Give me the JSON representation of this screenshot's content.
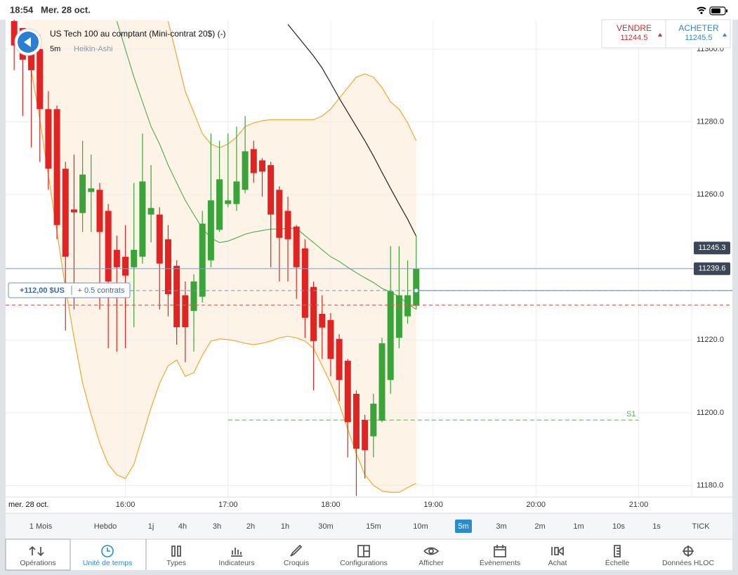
{
  "status_bar": {
    "time": "18:54",
    "date": "Mer. 28 oct."
  },
  "instrument": {
    "name": "US Tech 100 au comptant (Mini-contrat 20$) (-)",
    "timeframe": "5m",
    "chart_style": "Heikin-Ashi"
  },
  "quote": {
    "sell_label": "VENDRE",
    "sell_price": 11244.5,
    "buy_label": "ACHETER",
    "buy_price": 11245.5
  },
  "position": {
    "profit": "+112,00 $US",
    "size": "+ 0.5 contrats"
  },
  "chart_data": {
    "type": "candlestick",
    "up_color": "#3aa33a",
    "down_color": "#e02424",
    "x": [
      895,
      900,
      905,
      910,
      915,
      920,
      925,
      930,
      935,
      940,
      945,
      950,
      955,
      960,
      965,
      970,
      975,
      980,
      985,
      990,
      995,
      1000,
      1005,
      1010,
      1015,
      1020,
      1025,
      1030,
      1035,
      1040,
      1045,
      1050,
      1055,
      1060,
      1065,
      1070,
      1075,
      1080,
      1085,
      1090,
      1095,
      1100,
      1105,
      1110,
      1115,
      1120,
      1125,
      1130
    ],
    "open": [
      11307.7,
      11305.8,
      11301.0,
      11300.0,
      11283.5,
      11283.5,
      11267.1,
      11255.9,
      11254.9,
      11260.7,
      11261.3,
      11255.5,
      11244.8,
      11242.9,
      11240.0,
      11242.9,
      11254.5,
      11254.5,
      11247.7,
      11240.4,
      11232.3,
      11228.0,
      11231.9,
      11241.9,
      11250.3,
      11257.4,
      11257.4,
      11261.3,
      11272.5,
      11269.4,
      11268.1,
      11261.3,
      11255.5,
      11251.2,
      11245.2,
      11234.6,
      11227.2,
      11225.5,
      11220.3,
      11214.3,
      11205.2,
      11198.0,
      11193.5,
      11197.8,
      11209.0,
      11220.6,
      11226.5,
      11229.4
    ],
    "high": [
      11308.7,
      11305.8,
      11301.9,
      11303.9,
      11288.4,
      11284.5,
      11269.0,
      11271.0,
      11274.8,
      11271.0,
      11263.2,
      11257.4,
      11248.7,
      11251.6,
      11263.2,
      11276.8,
      11268.1,
      11256.5,
      11251.6,
      11241.9,
      11236.1,
      11238.1,
      11255.5,
      11276.8,
      11274.8,
      11276.8,
      11278.7,
      11281.6,
      11274.8,
      11270.0,
      11269.0,
      11262.3,
      11259.4,
      11251.6,
      11247.7,
      11236.1,
      11232.3,
      11227.4,
      11221.6,
      11214.8,
      11206.1,
      11199.4,
      11205.2,
      11220.6,
      11245.8,
      11245.8,
      11241.9,
      11248.7
    ],
    "low": [
      11294.2,
      11281.6,
      11272.9,
      11269.0,
      11261.3,
      11247.7,
      11222.6,
      11228.4,
      11249.7,
      11249.7,
      11228.4,
      11217.7,
      11216.8,
      11217.7,
      11223.5,
      11241.0,
      11246.8,
      11228.4,
      11226.5,
      11218.7,
      11213.9,
      11216.8,
      11230.3,
      11240.0,
      11249.7,
      11256.5,
      11255.5,
      11260.3,
      11263.2,
      11259.4,
      11240.0,
      11236.1,
      11236.1,
      11231.3,
      11220.6,
      11206.1,
      11214.8,
      11210.0,
      11203.2,
      11187.7,
      11177.1,
      11181.9,
      11187.7,
      11197.4,
      11205.2,
      11217.7,
      11224.5,
      11228.4
    ],
    "close": [
      11301.0,
      11297.1,
      11294.2,
      11283.5,
      11267.1,
      11251.6,
      11242.9,
      11255.1,
      11265.5,
      11261.7,
      11249.7,
      11236.1,
      11240.0,
      11237.7,
      11244.8,
      11263.6,
      11256.3,
      11241.0,
      11232.6,
      11223.5,
      11223.5,
      11236.1,
      11252.0,
      11258.4,
      11264.2,
      11258.4,
      11263.6,
      11271.9,
      11265.9,
      11266.3,
      11254.5,
      11248.1,
      11247.7,
      11240.0,
      11226.1,
      11219.7,
      11223.4,
      11214.8,
      11209.0,
      11197.4,
      11190.1,
      11189.7,
      11202.5,
      11219.1,
      11233.4,
      11232.3,
      11232.3,
      11239.6
    ],
    "overlays": [
      {
        "color": "#f0a830",
        "values": [
          null,
          null,
          null,
          null,
          null,
          null,
          null,
          null,
          null,
          null,
          null,
          null,
          null,
          null,
          null,
          null,
          null,
          null,
          11307.7,
          11298.1,
          11288.4,
          11282.6,
          11276.8,
          11273.9,
          11272.9,
          11273.9,
          11275.8,
          11278.7,
          11279.7,
          11280.3,
          11280.6,
          11280.6,
          11280.6,
          11280.6,
          11280.6,
          11280.6,
          11281.6,
          11283.5,
          11286.5,
          11289.4,
          11292.3,
          11293.2,
          11292.3,
          11289.4,
          11285.5,
          11283.5,
          11279.7,
          11274.8
        ]
      },
      {
        "color": "#f0a830",
        "values": [
          null,
          11303.9,
          11294.2,
          11280.6,
          11265.2,
          11249.7,
          11234.2,
          11220.6,
          11208.1,
          11199.4,
          11191.6,
          11185.8,
          11182.9,
          11181.9,
          11185.8,
          11193.5,
          11201.3,
          11208.1,
          11212.9,
          11214.5,
          11210.0,
          11211.0,
          11215.8,
          11219.7,
          11220.3,
          11220.1,
          11219.7,
          11219.1,
          11218.7,
          11219.1,
          11219.7,
          11220.6,
          11221.0,
          11220.6,
          11219.7,
          11217.7,
          11212.9,
          11208.1,
          11202.3,
          11195.5,
          11188.7,
          11182.9,
          11180.0,
          11178.5,
          11178.1,
          11178.1,
          11179.4,
          11180.6
        ]
      },
      {
        "color": "#5cae5c",
        "values": [
          null,
          null,
          null,
          null,
          null,
          null,
          null,
          null,
          null,
          null,
          null,
          null,
          11307.7,
          11300.0,
          11292.3,
          11285.5,
          11278.7,
          11273.9,
          11268.1,
          11263.2,
          11258.4,
          11254.5,
          11250.7,
          11248.1,
          11246.8,
          11247.2,
          11248.1,
          11249.1,
          11249.7,
          11250.1,
          11250.5,
          11250.5,
          11250.7,
          11250.7,
          11248.7,
          11246.8,
          11244.8,
          11242.9,
          11241.6,
          11240.0,
          11238.5,
          11237.1,
          11235.8,
          11234.2,
          11233.2,
          11231.9,
          11230.0,
          11228.4
        ]
      },
      {
        "color": "#222222",
        "values": [
          null,
          null,
          null,
          null,
          null,
          null,
          null,
          null,
          null,
          null,
          null,
          null,
          null,
          null,
          null,
          null,
          null,
          null,
          null,
          null,
          null,
          null,
          null,
          null,
          null,
          null,
          null,
          null,
          null,
          null,
          null,
          null,
          11306.8,
          11303.9,
          11301.0,
          11298.1,
          11294.8,
          11290.7,
          11286.5,
          11282.6,
          11278.7,
          11274.8,
          11270.6,
          11266.1,
          11261.7,
          11257.4,
          11253.2,
          11248.5
        ]
      }
    ],
    "band_fill": "#fdf3e6",
    "xlim": [
      890,
      1291
    ],
    "ylim": [
      11176.8,
      11308.1
    ],
    "xticks": [
      {
        "value": 960,
        "label": "16:00"
      },
      {
        "value": 1020,
        "label": "17:00"
      },
      {
        "value": 1080,
        "label": "18:00"
      },
      {
        "value": 1140,
        "label": "19:00"
      },
      {
        "value": 1200,
        "label": "20:00"
      },
      {
        "value": 1260,
        "label": "21:00"
      }
    ],
    "yticks": [
      {
        "value": 11180,
        "label": "11180.0"
      },
      {
        "value": 11200,
        "label": "11200.0"
      },
      {
        "value": 11220,
        "label": "11220.0"
      },
      {
        "value": 11240,
        "label": "11240.0"
      },
      {
        "value": 11260,
        "label": "11260.0"
      },
      {
        "value": 11280,
        "label": "11280.0"
      },
      {
        "value": 11300,
        "label": "11300.0"
      }
    ],
    "grid": true,
    "price_tags": [
      11245.3,
      11239.6
    ],
    "levels": [
      {
        "value": 11233.6,
        "color": "#6b93c4"
      },
      {
        "value": 11229.6,
        "color": "#e0604f"
      }
    ],
    "support": {
      "label": "S1",
      "value": 11198.0,
      "color": "#5cae5c",
      "x_range": [
        1020,
        1260
      ]
    },
    "date_label": "mer. 28 oct."
  },
  "timeframes": {
    "options": [
      "1 Mois",
      "Hebdo",
      "1j",
      "4h",
      "3h",
      "2h",
      "1h",
      "30m",
      "15m",
      "10m",
      "5m",
      "3m",
      "2m",
      "1m",
      "10s",
      "1s",
      "TICK"
    ],
    "selected": "5m"
  },
  "toolbar": {
    "items": [
      "Opérations",
      "Unité de temps",
      "Types",
      "Indicateurs",
      "Croquis",
      "Configurations",
      "Afficher",
      "Évènements",
      "Achat",
      "Échelle",
      "Données HLOC"
    ],
    "selected": "Unité de temps"
  }
}
